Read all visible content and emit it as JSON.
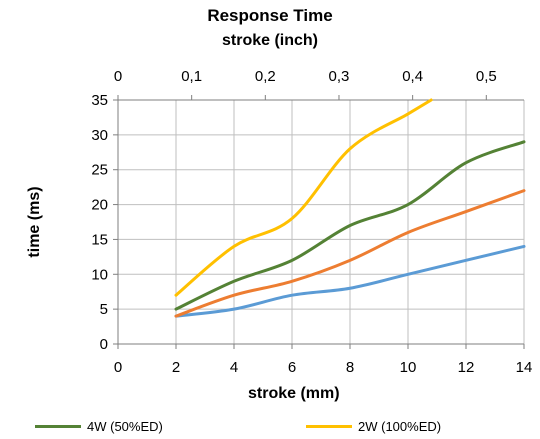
{
  "chart_data": {
    "type": "line",
    "title": "Response Time",
    "xlabel": "stroke (mm)",
    "ylabel": "time (ms)",
    "xlim": [
      0,
      14
    ],
    "ylim": [
      0,
      35
    ],
    "x_ticks": [
      0,
      2,
      4,
      6,
      8,
      10,
      12,
      14
    ],
    "y_ticks": [
      0,
      5,
      10,
      15,
      20,
      25,
      30,
      35
    ],
    "top_axis": {
      "label": "stroke (inch)",
      "ticks": [
        0,
        0.1,
        0.2,
        0.3,
        0.4,
        0.5
      ],
      "tick_labels": [
        "0",
        "0,1",
        "0,2",
        "0,3",
        "0,4",
        "0,5"
      ],
      "mm_per_unit": 25.4
    },
    "grid": true,
    "legend_position": "bottom",
    "series": [
      {
        "name": "",
        "color": "#5b9bd5",
        "x": [
          2,
          4,
          6,
          8,
          10,
          12,
          14
        ],
        "values": [
          4,
          5,
          7,
          8,
          10,
          12,
          14
        ]
      },
      {
        "name": "",
        "color": "#ed7d31",
        "x": [
          2,
          4,
          6,
          8,
          10,
          12,
          14
        ],
        "values": [
          4,
          7,
          9,
          12,
          16,
          19,
          22
        ]
      },
      {
        "name": "4W (50%ED)",
        "color": "#548235",
        "x": [
          2,
          4,
          6,
          8,
          10,
          12,
          14
        ],
        "values": [
          5,
          9,
          12,
          17,
          20,
          26,
          29
        ]
      },
      {
        "name": "2W (100%ED)",
        "color": "#ffc000",
        "x": [
          2,
          4,
          6,
          8,
          10,
          10.8
        ],
        "values": [
          7,
          14,
          18,
          28,
          33,
          35
        ]
      }
    ]
  }
}
